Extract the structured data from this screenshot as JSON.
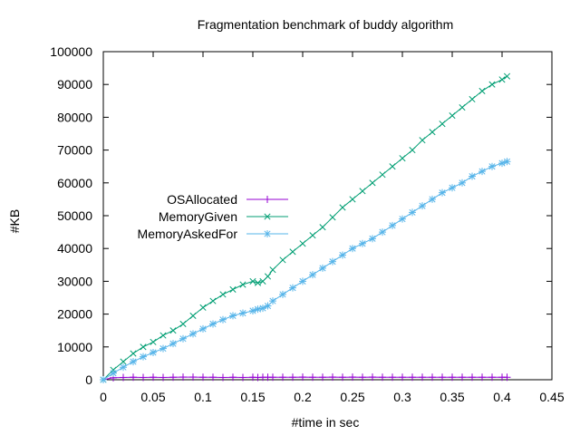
{
  "chart_data": {
    "type": "line",
    "title": "Fragmentation benchmark of buddy algorithm",
    "xlabel": "#time in sec",
    "ylabel": "#KB",
    "xlim": [
      0,
      0.45
    ],
    "ylim": [
      0,
      100000
    ],
    "x_ticks": [
      0,
      0.05,
      0.1,
      0.15,
      0.2,
      0.25,
      0.3,
      0.35,
      0.4,
      0.45
    ],
    "x_tick_labels": [
      "0",
      "0.05",
      "0.1",
      "0.15",
      "0.2",
      "0.25",
      "0.3",
      "0.35",
      "0.4",
      "0.45"
    ],
    "y_ticks": [
      0,
      10000,
      20000,
      30000,
      40000,
      50000,
      60000,
      70000,
      80000,
      90000,
      100000
    ],
    "y_tick_labels": [
      "0",
      "10000",
      "20000",
      "30000",
      "40000",
      "50000",
      "60000",
      "70000",
      "80000",
      "90000",
      "100000"
    ],
    "legend_position": "middle-left",
    "x": [
      0,
      0.01,
      0.02,
      0.03,
      0.04,
      0.05,
      0.06,
      0.07,
      0.08,
      0.09,
      0.1,
      0.11,
      0.12,
      0.13,
      0.14,
      0.15,
      0.155,
      0.16,
      0.165,
      0.17,
      0.18,
      0.19,
      0.2,
      0.21,
      0.22,
      0.23,
      0.24,
      0.25,
      0.26,
      0.27,
      0.28,
      0.29,
      0.3,
      0.31,
      0.32,
      0.33,
      0.34,
      0.35,
      0.36,
      0.37,
      0.38,
      0.39,
      0.4,
      0.405
    ],
    "series": [
      {
        "name": "OSAllocated",
        "color": "#9400d3",
        "marker": "plus",
        "values": [
          0,
          600,
          700,
          750,
          700,
          750,
          700,
          750,
          800,
          800,
          750,
          750,
          700,
          750,
          700,
          750,
          700,
          750,
          750,
          750,
          750,
          750,
          800,
          750,
          750,
          800,
          750,
          800,
          750,
          800,
          750,
          750,
          750,
          750,
          750,
          750,
          750,
          750,
          750,
          750,
          750,
          750,
          750,
          750
        ]
      },
      {
        "name": "MemoryGiven",
        "color": "#009e73",
        "marker": "x",
        "values": [
          0,
          3000,
          5500,
          8000,
          10000,
          11500,
          13500,
          15000,
          17000,
          19500,
          22000,
          24000,
          26000,
          27500,
          29000,
          30000,
          29500,
          30000,
          31500,
          33500,
          36500,
          39000,
          41500,
          44000,
          46500,
          49500,
          52500,
          55000,
          57500,
          60000,
          62500,
          65000,
          67500,
          70000,
          73000,
          75500,
          78000,
          80500,
          83000,
          85500,
          88000,
          90000,
          91500,
          92500
        ]
      },
      {
        "name": "MemoryAskedFor",
        "color": "#56b4e9",
        "marker": "star",
        "values": [
          0,
          2000,
          3800,
          5500,
          7000,
          8300,
          9500,
          11000,
          12500,
          14000,
          15500,
          17000,
          18300,
          19500,
          20300,
          21000,
          21500,
          21800,
          22500,
          24000,
          26000,
          28000,
          30000,
          32000,
          34000,
          36000,
          38000,
          40000,
          41500,
          43000,
          45000,
          47000,
          49000,
          51000,
          53000,
          55000,
          57000,
          58500,
          60000,
          62000,
          63500,
          65000,
          66000,
          66500
        ]
      }
    ]
  }
}
